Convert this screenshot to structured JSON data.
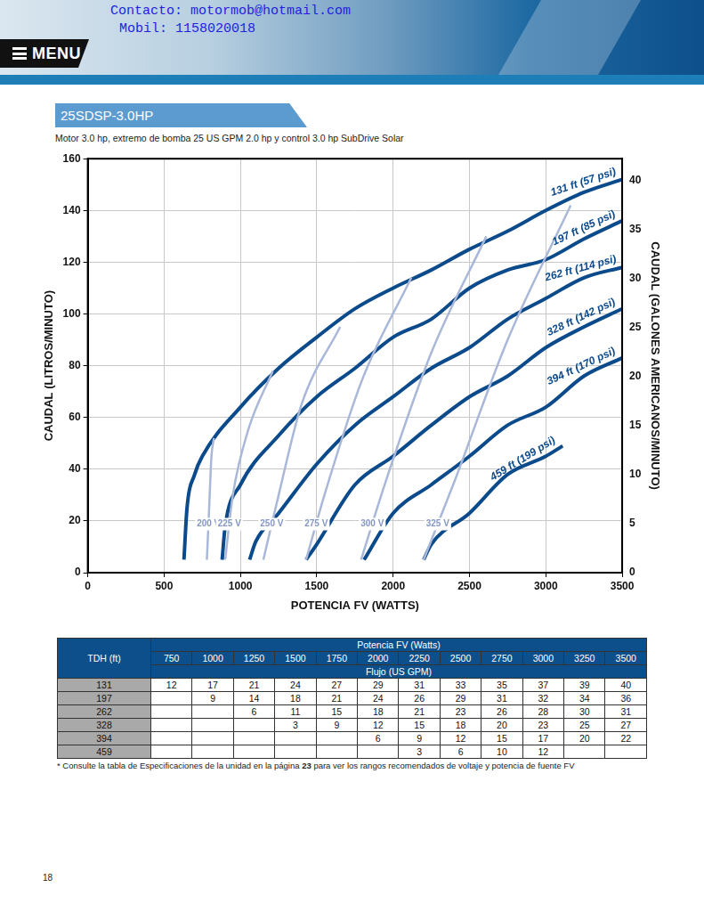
{
  "header": {
    "contact": "Contacto: motormob@hotmail.com",
    "mobile": "Mobil: 1158020018",
    "menu": "MENU"
  },
  "title": "25SDSP-3.0HP",
  "subtitle": "Motor 3.0 hp, extremo de bomba 25 US GPM 2.0 hp y control 3.0 hp SubDrive Solar",
  "chart_data": {
    "type": "line",
    "xlabel": "POTENCIA FV (WATTS)",
    "ylabel": "CAUDAL (LITROS/MINUTO)",
    "y2label": "CAUDAL (GALONES AMERICANOS/MINUTO)",
    "xlim": [
      0,
      3500
    ],
    "xticks": [
      0,
      500,
      1000,
      1500,
      2000,
      2500,
      3000,
      3500
    ],
    "ylim": [
      0,
      160
    ],
    "yticks": [
      0,
      20,
      40,
      60,
      80,
      100,
      120,
      140,
      160
    ],
    "y2lim": [
      0,
      42.27
    ],
    "y2ticks": [
      0,
      5,
      10,
      15,
      20,
      25,
      30,
      35,
      40
    ],
    "grid": true,
    "series": [
      {
        "name": "131 ft (57 psi)",
        "color": "#0b4a8b",
        "x": [
          630,
          650,
          700,
          750,
          1000,
          1250,
          1500,
          1750,
          2000,
          2250,
          2500,
          2750,
          3000,
          3250,
          3500
        ],
        "values": [
          5,
          25,
          38,
          45,
          64,
          79,
          91,
          102,
          110,
          117,
          125,
          132,
          140,
          147,
          152
        ]
      },
      {
        "name": "197 ft (85 psi)",
        "color": "#0b4a8b",
        "x": [
          880,
          900,
          1000,
          1250,
          1500,
          1750,
          2000,
          2250,
          2500,
          2750,
          3000,
          3250,
          3500
        ],
        "values": [
          5,
          18,
          34,
          53,
          68,
          79,
          91,
          98,
          110,
          117,
          121,
          129,
          136
        ]
      },
      {
        "name": "262 ft (114 psi)",
        "color": "#0b4a8b",
        "x": [
          1060,
          1100,
          1250,
          1500,
          1750,
          2000,
          2250,
          2500,
          2750,
          3000,
          3250,
          3500
        ],
        "values": [
          5,
          12,
          23,
          42,
          57,
          68,
          79,
          87,
          98,
          106,
          114,
          118
        ]
      },
      {
        "name": "328 ft (142 psi)",
        "color": "#0b4a8b",
        "x": [
          1430,
          1500,
          1750,
          2000,
          2250,
          2500,
          2750,
          3000,
          3250,
          3500
        ],
        "values": [
          5,
          11,
          34,
          45,
          57,
          68,
          76,
          87,
          95,
          102
        ]
      },
      {
        "name": "394 ft (170 psi)",
        "color": "#0b4a8b",
        "x": [
          1810,
          2000,
          2250,
          2500,
          2750,
          3000,
          3250,
          3500
        ],
        "values": [
          5,
          23,
          34,
          45,
          57,
          64,
          76,
          83
        ]
      },
      {
        "name": "459 ft (199 psi)",
        "color": "#0b4a8b",
        "x": [
          2200,
          2250,
          2500,
          2750,
          3000,
          3110
        ],
        "values": [
          5,
          11,
          23,
          38,
          45,
          49
        ]
      }
    ],
    "voltage_lines": [
      {
        "name": "200 V",
        "color": "#a9b8d8",
        "x": [
          780,
          795,
          810,
          826
        ],
        "values": [
          5,
          25,
          45,
          52
        ]
      },
      {
        "name": "225 V",
        "color": "#a9b8d8",
        "x": [
          900,
          950,
          1050,
          1212
        ],
        "values": [
          5,
          30,
          55,
          78
        ]
      },
      {
        "name": "250 V",
        "color": "#a9b8d8",
        "x": [
          1150,
          1250,
          1400,
          1653
        ],
        "values": [
          5,
          30,
          65,
          95
        ]
      },
      {
        "name": "275 V",
        "color": "#a9b8d8",
        "x": [
          1430,
          1550,
          1800,
          2119
        ],
        "values": [
          5,
          30,
          75,
          114
        ]
      },
      {
        "name": "300 V",
        "color": "#a9b8d8",
        "x": [
          1790,
          1950,
          2250,
          2610
        ],
        "values": [
          5,
          35,
          85,
          130
        ]
      },
      {
        "name": "325 V",
        "color": "#a9b8d8",
        "x": [
          2200,
          2400,
          2750,
          3163
        ],
        "values": [
          5,
          35,
          90,
          142
        ]
      }
    ]
  },
  "table": {
    "header_top": "Potencia FV (Watts)",
    "row_header": "TDH (ft)",
    "columns": [
      750,
      1000,
      1250,
      1500,
      1750,
      2000,
      2250,
      2500,
      2750,
      3000,
      3250,
      3500
    ],
    "subheader": "Flujo (US GPM)",
    "rows": [
      {
        "tdh": 131,
        "values": [
          12,
          17,
          21,
          24,
          27,
          29,
          31,
          33,
          35,
          37,
          39,
          40
        ]
      },
      {
        "tdh": 197,
        "values": [
          null,
          9,
          14,
          18,
          21,
          24,
          26,
          29,
          31,
          32,
          34,
          36
        ]
      },
      {
        "tdh": 262,
        "values": [
          null,
          null,
          6,
          11,
          15,
          18,
          21,
          23,
          26,
          28,
          30,
          31
        ]
      },
      {
        "tdh": 328,
        "values": [
          null,
          null,
          null,
          3,
          9,
          12,
          15,
          18,
          20,
          23,
          25,
          27
        ]
      },
      {
        "tdh": 394,
        "values": [
          null,
          null,
          null,
          null,
          null,
          6,
          9,
          12,
          15,
          17,
          20,
          22
        ]
      },
      {
        "tdh": 459,
        "values": [
          null,
          null,
          null,
          null,
          null,
          null,
          3,
          6,
          10,
          12,
          null,
          null
        ]
      }
    ]
  },
  "footnote": {
    "before": "* Consulte la tabla de Especificaciones de la unidad en la página ",
    "page": 23,
    "after": " para ver los rangos recomendados de voltaje y potencia de fuente FV"
  },
  "page_number": 18
}
